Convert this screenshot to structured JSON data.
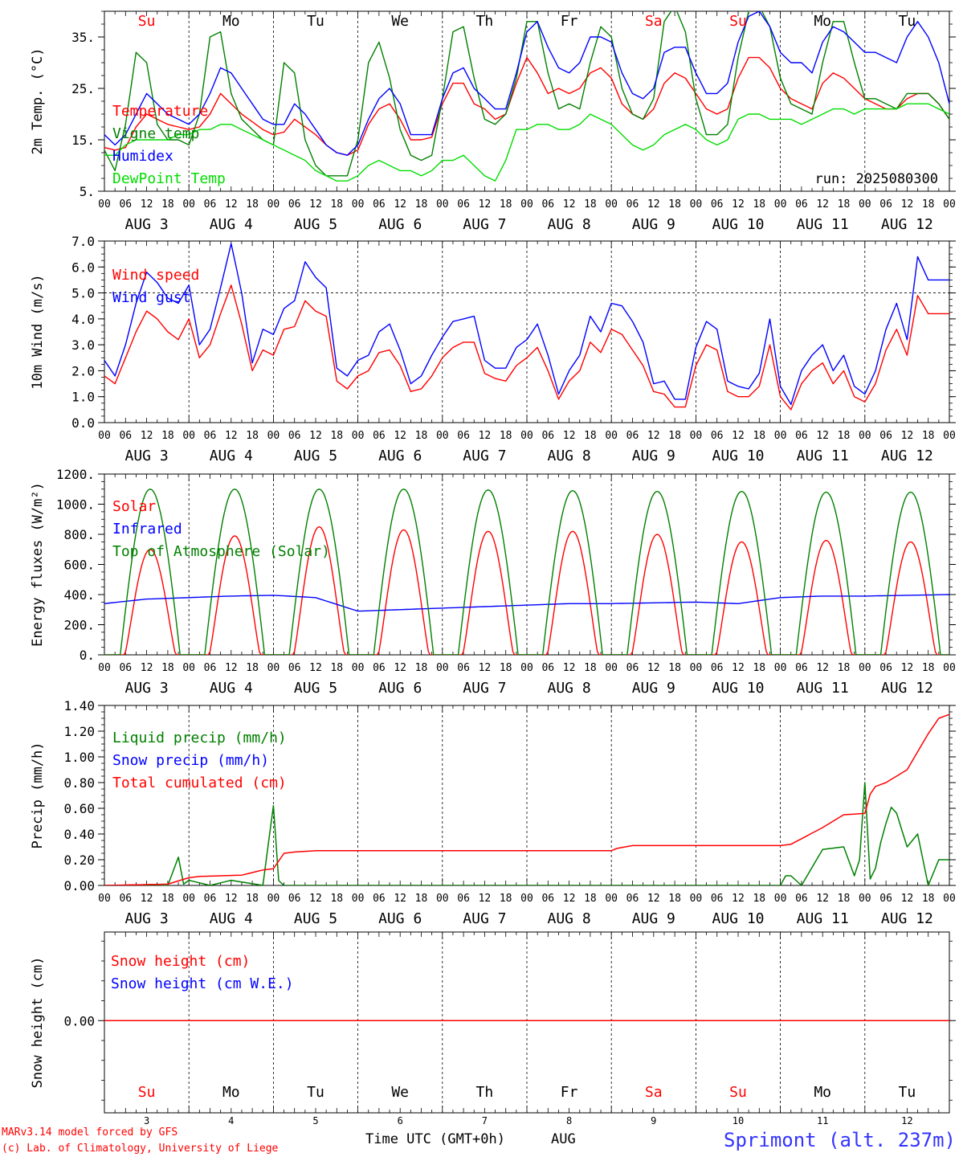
{
  "x_axis": {
    "hour_ticks": [
      "00",
      "06",
      "12",
      "18"
    ],
    "end_tick": "00",
    "dates": [
      "AUG 3",
      "AUG 4",
      "AUG 5",
      "AUG 6",
      "AUG 7",
      "AUG 8",
      "AUG 9",
      "AUG 10",
      "AUG 11",
      "AUG 12"
    ],
    "weekdays": [
      "Su",
      "Mo",
      "Tu",
      "We",
      "Th",
      "Fr",
      "Sa",
      "Su",
      "Mo",
      "Tu"
    ],
    "weekday_colors": [
      "#ff0000",
      "#000000",
      "#000000",
      "#000000",
      "#000000",
      "#000000",
      "#ff0000",
      "#ff0000",
      "#000000",
      "#000000"
    ],
    "day_numbers": [
      "3",
      "4",
      "5",
      "6",
      "7",
      "8",
      "9",
      "10",
      "11",
      "12"
    ],
    "xlabel": "Time UTC (GMT+0h)",
    "month": "AUG"
  },
  "footer": {
    "credit_line1": "MARv3.14 model forced by GFS",
    "credit_line2": "(c) Lab. of Climatology, University of Liege",
    "station": "Sprimont (alt. 237m)"
  },
  "colors": {
    "red": "#ff0000",
    "green": "#008000",
    "blue": "#0000ff",
    "lightgreen": "#00dd00"
  },
  "chart_data": [
    {
      "type": "line",
      "ylabel": "2m Temp. (°C)",
      "ylim": [
        5,
        40
      ],
      "yticks": [
        5,
        15,
        25,
        35
      ],
      "ytick_labels": [
        "5.",
        "15.",
        "25.",
        "35."
      ],
      "annotation": "run: 2025080300",
      "x_hours": [
        0,
        3,
        6,
        9,
        12,
        15,
        18,
        21,
        24,
        27,
        30,
        33,
        36,
        39,
        42,
        45,
        48,
        51,
        54,
        57,
        60,
        63,
        66,
        69,
        72,
        75,
        78,
        81,
        84,
        87,
        90,
        93,
        96,
        99,
        102,
        105,
        108,
        111,
        114,
        117,
        120,
        123,
        126,
        129,
        132,
        135,
        138,
        141,
        144,
        147,
        150,
        153,
        156,
        159,
        162,
        165,
        168,
        171,
        174,
        177,
        180,
        183,
        186,
        189,
        192,
        195,
        198,
        201,
        204,
        207,
        210,
        213,
        216,
        219,
        222,
        225,
        228,
        231,
        234,
        237,
        240
      ],
      "series": [
        {
          "name": "Temperature",
          "color": "#ff0000",
          "values": [
            13.5,
            13,
            13.5,
            17.5,
            20,
            19,
            18,
            17.5,
            17,
            17.5,
            20,
            24,
            22,
            20,
            18.5,
            17,
            16,
            16.5,
            19,
            17.5,
            16,
            14,
            12.5,
            12,
            13,
            18,
            21,
            22,
            19,
            15,
            15,
            15.5,
            22,
            26,
            26,
            22,
            21,
            19,
            20,
            26,
            31,
            28,
            24,
            25,
            24,
            25,
            28,
            29,
            27,
            22,
            20,
            19,
            21,
            26,
            28,
            27,
            24,
            21,
            20,
            21,
            27,
            31,
            31,
            29,
            25,
            23,
            22,
            21,
            26,
            28,
            27,
            25,
            23,
            22,
            21,
            21,
            23,
            24,
            24,
            22,
            19
          ]
        },
        {
          "name": "Vigne temp",
          "color": "#008000",
          "values": [
            13,
            9,
            18,
            32,
            30,
            18,
            15,
            15,
            14,
            20,
            35,
            36,
            24,
            19,
            17,
            15,
            14,
            30,
            28,
            15,
            10,
            8,
            8,
            8,
            15,
            30,
            34,
            27,
            17,
            12,
            11,
            12,
            23,
            36,
            37,
            27,
            19,
            18,
            20,
            27,
            38,
            38,
            28,
            21,
            22,
            21,
            30,
            37,
            35,
            25,
            20,
            19,
            23,
            38,
            41,
            36,
            23,
            16,
            16,
            18,
            31,
            40,
            41,
            37,
            27,
            22,
            21,
            20,
            30,
            38,
            38,
            30,
            23,
            23,
            22,
            21,
            24,
            24,
            24,
            22,
            19
          ]
        },
        {
          "name": "Humidex",
          "color": "#0000ff",
          "values": [
            16,
            14,
            16,
            20,
            24,
            22,
            20,
            19,
            18,
            20,
            24,
            29,
            28,
            25,
            22,
            19,
            18,
            18,
            22,
            20,
            17,
            14,
            12.5,
            12,
            14,
            19,
            23,
            25,
            22,
            16,
            16,
            16,
            23,
            28,
            29,
            25,
            23,
            21,
            21,
            28,
            36,
            38,
            33,
            29,
            28,
            30,
            35,
            35,
            34,
            28,
            24,
            23,
            25,
            32,
            33,
            33,
            28,
            24,
            24,
            26,
            34,
            39,
            40,
            37,
            32,
            30,
            30,
            28,
            34,
            37,
            36,
            34,
            32,
            32,
            31,
            30,
            35,
            38,
            35,
            30,
            22
          ]
        },
        {
          "name": "DewPoint Temp",
          "color": "#00dd00",
          "values": [
            12,
            12,
            14,
            15,
            15,
            15,
            15,
            16,
            16,
            17,
            17,
            18,
            18,
            17,
            16,
            15,
            14,
            13,
            12,
            11,
            9,
            8,
            7,
            7,
            8,
            10,
            11,
            10,
            9,
            9,
            8,
            9,
            11,
            11,
            12,
            10,
            8,
            7,
            11,
            17,
            17,
            18,
            18,
            17,
            17,
            18,
            20,
            19,
            18,
            16,
            14,
            13,
            14,
            16,
            17,
            18,
            17,
            15,
            14,
            15,
            19,
            20,
            20,
            19,
            19,
            19,
            18,
            19,
            20,
            21,
            21,
            20,
            21,
            21,
            21,
            21,
            22,
            22,
            22,
            21,
            20
          ]
        }
      ]
    },
    {
      "type": "line",
      "ylabel": "10m Wind (m/s)",
      "ylim": [
        0,
        7
      ],
      "yticks": [
        0,
        1,
        2,
        3,
        4,
        5,
        6,
        7
      ],
      "ytick_labels": [
        "0.0",
        "1.0",
        "2.0",
        "3.0",
        "4.0",
        "5.0",
        "6.0",
        "7.0"
      ],
      "reference_line": 5,
      "x_hours": [
        0,
        3,
        6,
        9,
        12,
        15,
        18,
        21,
        24,
        27,
        30,
        33,
        36,
        39,
        42,
        45,
        48,
        51,
        54,
        57,
        60,
        63,
        66,
        69,
        72,
        75,
        78,
        81,
        84,
        87,
        90,
        93,
        96,
        99,
        102,
        105,
        108,
        111,
        114,
        117,
        120,
        123,
        126,
        129,
        132,
        135,
        138,
        141,
        144,
        147,
        150,
        153,
        156,
        159,
        162,
        165,
        168,
        171,
        174,
        177,
        180,
        183,
        186,
        189,
        192,
        195,
        198,
        201,
        204,
        207,
        210,
        213,
        216,
        219,
        222,
        225,
        228,
        231,
        234,
        237,
        240
      ],
      "series": [
        {
          "name": "Wind speed",
          "color": "#ff0000",
          "values": [
            1.8,
            1.5,
            2.5,
            3.5,
            4.3,
            4.0,
            3.5,
            3.2,
            4.0,
            2.5,
            3.0,
            4.2,
            5.3,
            3.8,
            2.0,
            2.8,
            2.6,
            3.6,
            3.7,
            4.7,
            4.3,
            4.1,
            1.6,
            1.3,
            1.8,
            2.0,
            2.7,
            2.8,
            2.2,
            1.2,
            1.3,
            1.8,
            2.5,
            2.9,
            3.1,
            3.1,
            1.9,
            1.7,
            1.6,
            2.2,
            2.5,
            2.9,
            2.0,
            0.9,
            1.6,
            2.0,
            3.1,
            2.7,
            3.6,
            3.4,
            2.8,
            2.2,
            1.2,
            1.1,
            0.6,
            0.6,
            2.2,
            3.0,
            2.8,
            1.2,
            1.0,
            1.0,
            1.4,
            3.0,
            1.0,
            0.5,
            1.5,
            2.0,
            2.3,
            1.5,
            2.0,
            1.0,
            0.8,
            1.5,
            2.8,
            3.6,
            2.6,
            4.9,
            4.2,
            4.2,
            4.2
          ]
        },
        {
          "name": "Wind gust",
          "color": "#0000ff",
          "values": [
            2.4,
            1.8,
            3.0,
            4.6,
            5.8,
            5.4,
            4.8,
            4.6,
            5.3,
            3.0,
            3.6,
            5.2,
            6.9,
            5.0,
            2.3,
            3.6,
            3.4,
            4.4,
            4.7,
            6.2,
            5.6,
            5.2,
            2.1,
            1.8,
            2.4,
            2.6,
            3.5,
            3.8,
            2.8,
            1.5,
            1.8,
            2.6,
            3.3,
            3.9,
            4.0,
            4.1,
            2.4,
            2.1,
            2.1,
            2.9,
            3.2,
            3.8,
            2.6,
            1.1,
            2.0,
            2.6,
            4.1,
            3.5,
            4.6,
            4.5,
            3.9,
            3.1,
            1.5,
            1.6,
            0.9,
            0.9,
            2.9,
            3.9,
            3.6,
            1.6,
            1.4,
            1.3,
            1.9,
            4.0,
            1.4,
            0.7,
            2.0,
            2.6,
            3.0,
            2.0,
            2.6,
            1.4,
            1.1,
            2.0,
            3.6,
            4.6,
            3.2,
            6.4,
            5.5,
            5.5,
            5.5
          ]
        }
      ]
    },
    {
      "type": "line",
      "ylabel": "Energy fluxes (W/m²)",
      "ylim": [
        0,
        1200
      ],
      "yticks": [
        0,
        200,
        400,
        600,
        800,
        1000,
        1200
      ],
      "ytick_labels": [
        "0.",
        "200.",
        "400.",
        "600.",
        "800.",
        "1000.",
        "1200."
      ],
      "series": [
        {
          "name": "Solar",
          "color": "#ff0000",
          "daily_peak_hour": 13,
          "daily_peaks": [
            700,
            790,
            850,
            830,
            820,
            820,
            800,
            750,
            760,
            750
          ]
        },
        {
          "name": "Infrared",
          "color": "#0000ff",
          "x_hours": [
            0,
            12,
            24,
            36,
            48,
            60,
            72,
            84,
            96,
            108,
            120,
            132,
            144,
            156,
            168,
            180,
            192,
            204,
            216,
            228,
            240
          ],
          "values": [
            340,
            370,
            380,
            390,
            395,
            380,
            290,
            300,
            310,
            320,
            330,
            340,
            340,
            345,
            350,
            340,
            380,
            390,
            390,
            395,
            400
          ]
        },
        {
          "name": "Top of Atmosphere (Solar)",
          "color": "#008000",
          "daily_peak_hour": 13,
          "daily_peaks": [
            1100,
            1100,
            1100,
            1100,
            1095,
            1090,
            1085,
            1085,
            1080,
            1080
          ]
        }
      ]
    },
    {
      "type": "line",
      "ylabel": "Precip (mm/h)",
      "ylim": [
        0,
        1.4
      ],
      "yticks": [
        0,
        0.2,
        0.4,
        0.6,
        0.8,
        1.0,
        1.2,
        1.4
      ],
      "ytick_labels": [
        "0.00",
        "0.20",
        "0.40",
        "0.60",
        "0.80",
        "1.00",
        "1.20",
        "1.40"
      ],
      "series": [
        {
          "name": "Liquid precip (mm/h)",
          "color": "#008000",
          "x_hours": [
            0,
            18,
            21,
            22,
            24,
            30,
            36,
            45,
            48,
            49,
            51,
            54,
            60,
            72,
            192,
            194,
            198,
            204,
            210,
            214,
            216,
            217,
            218,
            221,
            224,
            228,
            231,
            234,
            237,
            240
          ],
          "values": [
            0,
            0,
            0.22,
            0,
            0.04,
            0,
            0.04,
            0,
            0.62,
            0.05,
            0,
            0,
            0,
            0,
            0,
            0.1,
            0,
            0.28,
            0.3,
            0,
            0.8,
            0.1,
            0,
            0.4,
            0.65,
            0.3,
            0.4,
            0,
            0.2,
            0.2
          ]
        },
        {
          "name": "Snow precip (mm/h)",
          "color": "#0000ff",
          "values": []
        },
        {
          "name": "Total cumulated (cm)",
          "color": "#ff0000",
          "x_hours": [
            0,
            18,
            24,
            27,
            39,
            45,
            48,
            51,
            54,
            60,
            84,
            120,
            144,
            144,
            150,
            156,
            168,
            192,
            195,
            204,
            210,
            216,
            218,
            222,
            228,
            234,
            237,
            240
          ],
          "values": [
            0,
            0.01,
            0.06,
            0.07,
            0.08,
            0.12,
            0.13,
            0.25,
            0.26,
            0.27,
            0.27,
            0.27,
            0.27,
            0.28,
            0.31,
            0.31,
            0.31,
            0.31,
            0.32,
            0.45,
            0.55,
            0.56,
            0.76,
            0.8,
            0.9,
            1.18,
            1.3,
            1.33
          ]
        }
      ]
    },
    {
      "type": "line",
      "ylabel": "Snow height (cm)",
      "ytick_labels": [
        "0.00"
      ],
      "series": [
        {
          "name": "Snow height (cm)",
          "color": "#ff0000",
          "values": [
            0,
            0
          ]
        },
        {
          "name": "Snow height (cm W.E.)",
          "color": "#0000ff",
          "values": [
            0,
            0
          ]
        }
      ]
    }
  ]
}
